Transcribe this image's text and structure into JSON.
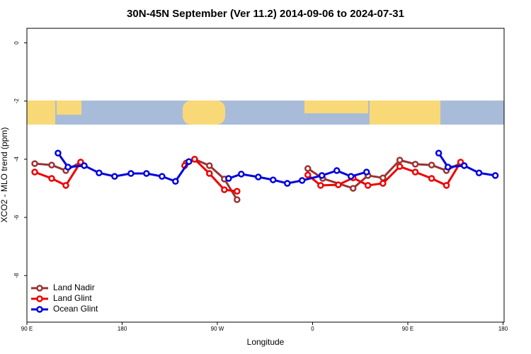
{
  "chart_data": {
    "type": "line",
    "title": "30N-45N September (Ver 11.2)   2014-09-06 to 2024-07-31",
    "x_label": "Longitude",
    "y_label": "XCO2 - MLO trend (ppm)",
    "xlim": [
      90,
      541
    ],
    "ylim": [
      -9.6,
      0.5
    ],
    "xticks": [
      {
        "value": 90,
        "label": "90 E"
      },
      180,
      {
        "value": 270,
        "label": "90 W"
      },
      {
        "value": 360,
        "label": "0"
      },
      {
        "value": 450,
        "label": "90 E"
      },
      {
        "value": 540,
        "label": "180"
      }
    ],
    "yticks": [
      0,
      -2,
      -4,
      -6,
      -8
    ],
    "legend": "bottom-left",
    "series": [
      {
        "name": "Land Nadir",
        "color": "#993333",
        "x": [
          97.4,
          113.4,
          126.8,
          140.8,
          null,
          240.5,
          248.5,
          262.5,
          276.6,
          288.6,
          null,
          355.5,
          369.6,
          398.3,
          412.3,
          426.5,
          442.4,
          457.1,
          472.5,
          486.5,
          499.9
        ],
        "values": [
          -4.15,
          -4.2,
          -4.39,
          -4.1,
          null,
          -4.13,
          -4.0,
          -4.22,
          -4.68,
          -5.39,
          null,
          -4.32,
          -4.66,
          -5.0,
          -4.56,
          -4.64,
          -4.03,
          -4.17,
          -4.2,
          -4.39,
          -4.13
        ]
      },
      {
        "name": "Land Glint",
        "color": "#ee0000",
        "x": [
          97.4,
          113.4,
          126.8,
          140.8,
          null,
          239.1,
          248.5,
          262.5,
          276.6,
          288.6,
          null,
          355.5,
          367.6,
          384.3,
          398.3,
          412.3,
          426.5,
          442.4,
          457.1,
          472.5,
          486.5,
          499.9
        ],
        "values": [
          -4.44,
          -4.66,
          -4.9,
          -4.1,
          null,
          -4.22,
          -4.0,
          -4.49,
          -5.05,
          -5.1,
          null,
          -4.54,
          -4.9,
          -4.88,
          -4.64,
          -4.9,
          -4.83,
          -4.25,
          -4.44,
          -4.66,
          -4.9,
          -4.1
        ]
      },
      {
        "name": "Ocean Glint",
        "color": "#0000dd",
        "x": [
          119.4,
          128.8,
          144.2,
          158.2,
          172.9,
          188.3,
          203.0,
          217.7,
          230.4,
          243.1,
          null,
          280.6,
          292.6,
          308.7,
          322.7,
          336.1,
          350.1,
          368.8,
          382.9,
          396.3,
          411.0,
          null,
          479.2,
          487.9,
          503.3,
          517.3,
          532.7
        ],
        "values": [
          -3.79,
          -4.27,
          -4.22,
          -4.47,
          -4.59,
          -4.49,
          -4.49,
          -4.59,
          -4.76,
          -4.08,
          null,
          -4.66,
          -4.51,
          -4.61,
          -4.71,
          -4.83,
          -4.73,
          -4.56,
          -4.39,
          -4.59,
          -4.44,
          null,
          -3.79,
          -4.27,
          -4.22,
          -4.47,
          -4.56
        ]
      }
    ]
  }
}
